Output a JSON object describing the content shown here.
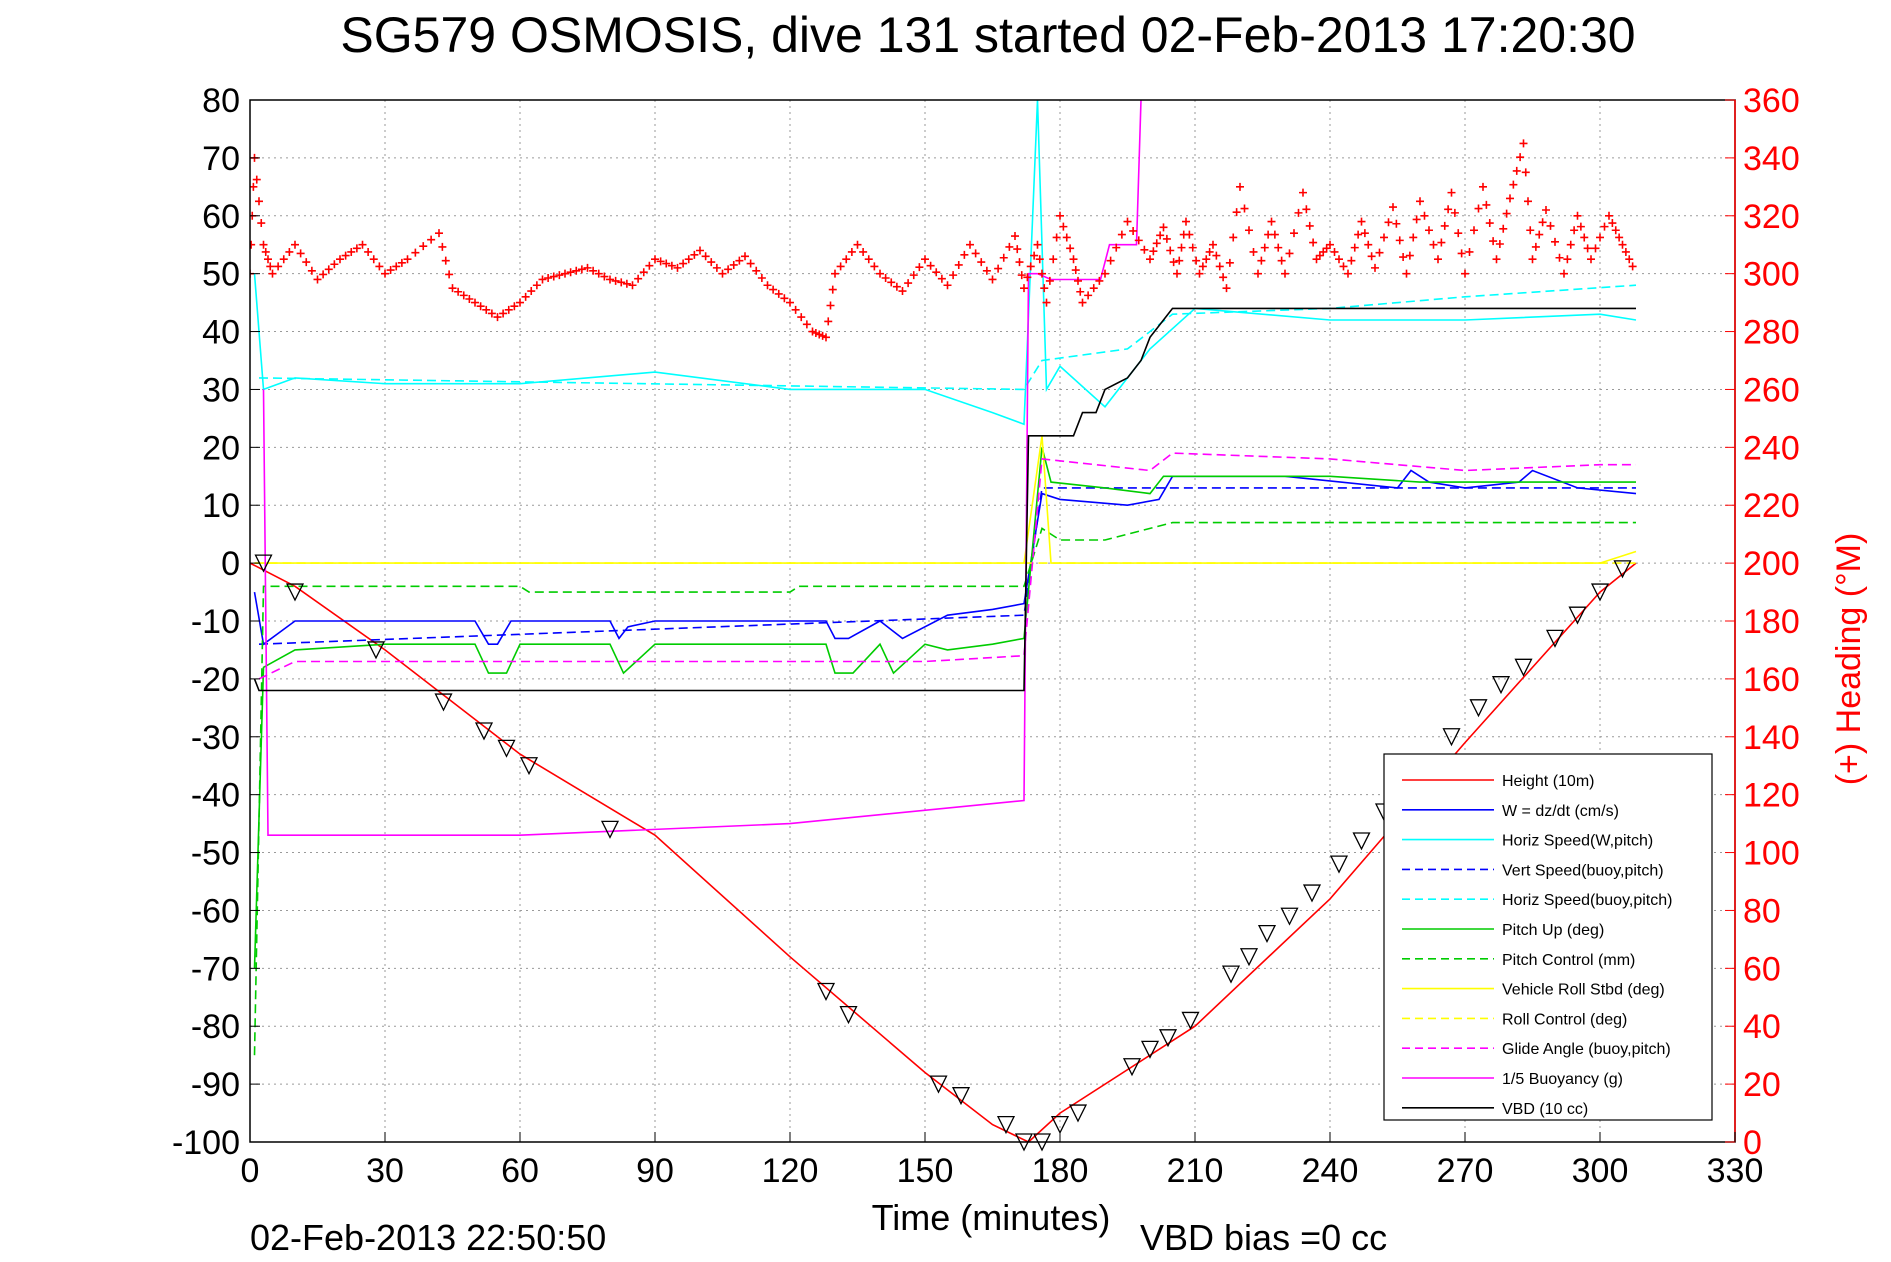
{
  "chart_data": {
    "type": "line",
    "title": "SG579 OSMOSIS, dive 131 started 02-Feb-2013 17:20:30",
    "xlabel": "Time (minutes)",
    "ylabel_right": "(+) Heading (°M)",
    "footer_left": "02-Feb-2013 22:50:50",
    "footer_right": "VBD bias =0 cc",
    "xlim": [
      0,
      330
    ],
    "ylim": [
      -100,
      80
    ],
    "ylim_right": [
      0,
      360
    ],
    "xticks": [
      0,
      30,
      60,
      90,
      120,
      150,
      180,
      210,
      240,
      270,
      300,
      330
    ],
    "yticks": [
      -100,
      -90,
      -80,
      -70,
      -60,
      -50,
      -40,
      -30,
      -20,
      -10,
      0,
      10,
      20,
      30,
      40,
      50,
      60,
      70,
      80
    ],
    "yticks_right": [
      0,
      20,
      40,
      60,
      80,
      100,
      120,
      140,
      160,
      180,
      200,
      220,
      240,
      260,
      280,
      300,
      320,
      340,
      360
    ],
    "grid": true,
    "legend_position": "bottom-right",
    "series": [
      {
        "name": "Height (10m)",
        "color": "#ff0000",
        "style": "solid",
        "x": [
          0,
          10,
          30,
          60,
          90,
          120,
          150,
          165,
          173,
          180,
          210,
          240,
          270,
          300,
          308
        ],
        "y": [
          0,
          -4,
          -15,
          -33,
          -47,
          -68,
          -88,
          -97,
          -100,
          -95,
          -80,
          -58,
          -31,
          -5,
          0
        ]
      },
      {
        "name": "W = dz/dt (cm/s)",
        "color": "#0000ff",
        "style": "solid",
        "x": [
          1,
          3,
          10,
          30,
          50,
          53,
          55,
          58,
          80,
          82,
          84,
          90,
          128,
          130,
          133,
          140,
          145,
          155,
          165,
          172,
          176,
          180,
          195,
          202,
          205,
          230,
          255,
          258,
          262,
          270,
          282,
          285,
          295,
          308
        ],
        "y": [
          -5,
          -14,
          -10,
          -10,
          -10,
          -14,
          -14,
          -10,
          -10,
          -13,
          -11,
          -10,
          -10,
          -13,
          -13,
          -10,
          -13,
          -9,
          -8,
          -7,
          12,
          11,
          10,
          11,
          15,
          15,
          13,
          16,
          14,
          13,
          14,
          16,
          13,
          12
        ]
      },
      {
        "name": "Horiz Speed(W,pitch)",
        "color": "#00ffff",
        "style": "solid",
        "x": [
          1,
          3,
          10,
          30,
          60,
          90,
          120,
          150,
          165,
          172,
          175,
          177,
          180,
          190,
          200,
          210,
          240,
          270,
          300,
          308
        ],
        "y": [
          50,
          30,
          32,
          31,
          31,
          33,
          30,
          30,
          26,
          24,
          80,
          30,
          34,
          27,
          37,
          44,
          42,
          42,
          43,
          42
        ]
      },
      {
        "name": "Vert Speed(buoy,pitch)",
        "color": "#0000ff",
        "style": "dashed",
        "x": [
          2,
          172,
          176,
          308
        ],
        "y": [
          -14,
          -9,
          13,
          13
        ]
      },
      {
        "name": "Horiz Speed(buoy,pitch)",
        "color": "#00ffff",
        "style": "dashed",
        "x": [
          2,
          172,
          176,
          195,
          205,
          240,
          270,
          308
        ],
        "y": [
          32,
          30,
          35,
          37,
          43,
          44,
          46,
          48
        ]
      },
      {
        "name": "Pitch Up (deg)",
        "color": "#00cc00",
        "style": "solid",
        "x": [
          1,
          3,
          10,
          30,
          50,
          53,
          57,
          60,
          80,
          83,
          90,
          128,
          130,
          134,
          140,
          143,
          150,
          155,
          165,
          172,
          176,
          178,
          190,
          200,
          203,
          240,
          260,
          270,
          308
        ],
        "y": [
          -70,
          -18,
          -15,
          -14,
          -14,
          -19,
          -19,
          -14,
          -14,
          -19,
          -14,
          -14,
          -19,
          -19,
          -14,
          -19,
          -14,
          -15,
          -14,
          -13,
          20,
          14,
          13,
          12,
          15,
          15,
          14,
          14,
          14
        ]
      },
      {
        "name": "Pitch Control (mm)",
        "color": "#00cc00",
        "style": "dashed",
        "x": [
          1,
          3,
          60,
          62,
          120,
          122,
          172,
          176,
          180,
          190,
          205,
          308
        ],
        "y": [
          -85,
          -4,
          -4,
          -5,
          -5,
          -4,
          -4,
          6,
          4,
          4,
          7,
          7
        ]
      },
      {
        "name": "Vehicle Roll Stbd (deg)",
        "color": "#ffff00",
        "style": "solid",
        "x": [
          1,
          10,
          30,
          60,
          90,
          120,
          150,
          172,
          176,
          178,
          190,
          200,
          240,
          270,
          300,
          308
        ],
        "y": [
          0,
          0,
          0,
          0,
          0,
          0,
          0,
          0,
          22,
          0,
          0,
          0,
          0,
          0,
          0,
          2
        ]
      },
      {
        "name": "Roll Control (deg)",
        "color": "#ffff00",
        "style": "dashed",
        "x": [
          1,
          172,
          176,
          308
        ],
        "y": [
          0,
          0,
          0,
          0
        ]
      },
      {
        "name": "Glide Angle (buoy,pitch)",
        "color": "#ff00ff",
        "style": "dashed",
        "x": [
          2,
          10,
          50,
          80,
          120,
          150,
          172,
          176,
          200,
          205,
          240,
          270,
          300,
          308
        ],
        "y": [
          -20,
          -17,
          -17,
          -17,
          -17,
          -17,
          -16,
          18,
          16,
          19,
          18,
          16,
          17,
          17
        ]
      },
      {
        "name": "1/5 Buoyancy (g)",
        "color": "#ff00ff",
        "style": "solid",
        "x": [
          3,
          4,
          60,
          120,
          172,
          173,
          175,
          178,
          189,
          191,
          197,
          198
        ],
        "y": [
          30,
          -47,
          -47,
          -45,
          -41,
          50,
          50,
          49,
          49,
          55,
          55,
          80
        ]
      },
      {
        "name": "VBD (10 cc)",
        "color": "#000000",
        "style": "solid",
        "x": [
          1,
          2,
          172,
          173,
          183,
          185,
          188,
          190,
          195,
          198,
          200,
          202,
          205,
          230,
          260,
          308
        ],
        "y": [
          -20,
          -22,
          -22,
          22,
          22,
          26,
          26,
          30,
          32,
          35,
          39,
          41,
          44,
          44,
          44,
          44
        ]
      }
    ],
    "heading": {
      "name": "(+) Heading",
      "color": "#ff0000",
      "marker": "+",
      "x": [
        0,
        1,
        3,
        5,
        10,
        15,
        20,
        25,
        30,
        35,
        42,
        45,
        50,
        55,
        60,
        65,
        70,
        75,
        80,
        85,
        90,
        95,
        100,
        105,
        110,
        115,
        120,
        125,
        128,
        130,
        135,
        140,
        145,
        150,
        155,
        160,
        165,
        170,
        172,
        175,
        177,
        180,
        183,
        185,
        190,
        195,
        200,
        203,
        206,
        208,
        211,
        214,
        217,
        220,
        224,
        227,
        230,
        234,
        237,
        240,
        244,
        247,
        250,
        254,
        257,
        260,
        264,
        267,
        270,
        274,
        277,
        280,
        283,
        285,
        288,
        292,
        295,
        298,
        302,
        305,
        308
      ],
      "y": [
        300,
        340,
        310,
        300,
        310,
        298,
        305,
        310,
        300,
        305,
        314,
        295,
        290,
        285,
        290,
        298,
        300,
        302,
        298,
        296,
        305,
        302,
        308,
        300,
        306,
        296,
        290,
        280,
        278,
        300,
        310,
        300,
        294,
        305,
        296,
        310,
        298,
        313,
        295,
        310,
        290,
        320,
        305,
        290,
        300,
        318,
        305,
        316,
        300,
        318,
        300,
        310,
        295,
        330,
        300,
        318,
        300,
        328,
        305,
        310,
        300,
        318,
        302,
        323,
        300,
        325,
        305,
        328,
        300,
        330,
        305,
        326,
        345,
        305,
        322,
        300,
        320,
        305,
        320,
        310,
        300
      ]
    },
    "waypoints": {
      "color": "#000000",
      "marker": "triangle",
      "x": [
        3,
        10,
        28,
        43,
        52,
        57,
        62,
        80,
        128,
        133,
        153,
        158,
        168,
        172,
        176,
        180,
        184,
        196,
        200,
        204,
        209,
        218,
        222,
        226,
        231,
        236,
        242,
        247,
        252,
        258,
        262,
        267,
        273,
        278,
        283,
        290,
        295,
        300,
        305
      ],
      "y": [
        0,
        -5,
        -15,
        -24,
        -29,
        -32,
        -35,
        -46,
        -74,
        -78,
        -90,
        -92,
        -97,
        -100,
        -100,
        -97,
        -95,
        -87,
        -84,
        -82,
        -79,
        -71,
        -68,
        -64,
        -61,
        -57,
        -52,
        -48,
        -43,
        -39,
        -35,
        -30,
        -25,
        -21,
        -18,
        -13,
        -9,
        -5,
        -1
      ]
    }
  },
  "legend": {
    "entries": [
      {
        "label": "Height (10m)",
        "color": "#ff0000",
        "dash": ""
      },
      {
        "label": "W = dz/dt (cm/s)",
        "color": "#0000ff",
        "dash": ""
      },
      {
        "label": "Horiz Speed(W,pitch)",
        "color": "#00ffff",
        "dash": ""
      },
      {
        "label": "Vert Speed(buoy,pitch)",
        "color": "#0000ff",
        "dash": "8,5"
      },
      {
        "label": "Horiz Speed(buoy,pitch)",
        "color": "#00ffff",
        "dash": "8,5"
      },
      {
        "label": "Pitch Up (deg)",
        "color": "#00cc00",
        "dash": ""
      },
      {
        "label": "Pitch Control (mm)",
        "color": "#00cc00",
        "dash": "8,5"
      },
      {
        "label": "Vehicle Roll Stbd (deg)",
        "color": "#ffff00",
        "dash": ""
      },
      {
        "label": "Roll Control (deg)",
        "color": "#ffff00",
        "dash": "8,5"
      },
      {
        "label": "Glide Angle (buoy,pitch)",
        "color": "#ff00ff",
        "dash": "8,5"
      },
      {
        "label": "1/5 Buoyancy (g)",
        "color": "#ff00ff",
        "dash": ""
      },
      {
        "label": "VBD (10 cc)",
        "color": "#000000",
        "dash": ""
      }
    ]
  }
}
